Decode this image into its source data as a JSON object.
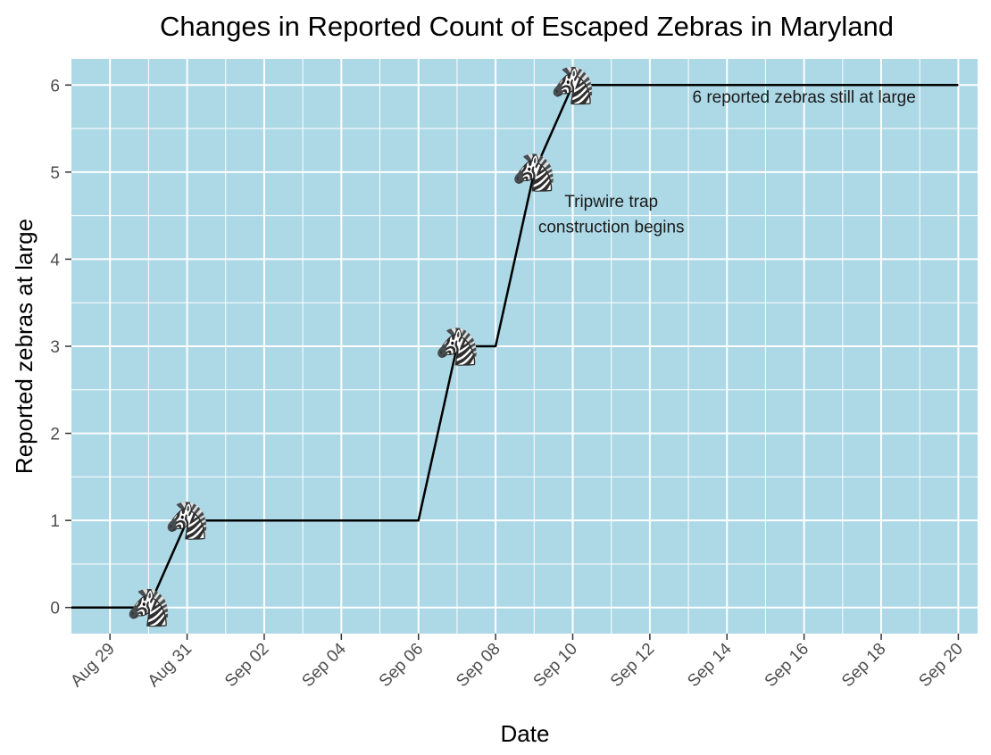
{
  "chart_data": {
    "type": "line",
    "title": "Changes in Reported Count of Escaped Zebras in Maryland",
    "xlabel": "Date",
    "ylabel": "Reported zebras at large",
    "xlim": [
      "2020-08-28",
      "2020-09-20"
    ],
    "ylim": [
      -0.3,
      6.3
    ],
    "x_ticks": [
      "2020-08-29",
      "2020-08-31",
      "2020-09-02",
      "2020-09-04",
      "2020-09-06",
      "2020-09-08",
      "2020-09-10",
      "2020-09-12",
      "2020-09-14",
      "2020-09-16",
      "2020-09-18",
      "2020-09-20"
    ],
    "x_tick_labels": [
      "Aug 29",
      "Aug 31",
      "Sep 02",
      "Sep 04",
      "Sep 06",
      "Sep 08",
      "Sep 10",
      "Sep 12",
      "Sep 14",
      "Sep 16",
      "Sep 18",
      "Sep 20"
    ],
    "y_ticks": [
      0,
      1,
      2,
      3,
      4,
      5,
      6
    ],
    "y_tick_labels": [
      "0",
      "1",
      "2",
      "3",
      "4",
      "5",
      "6"
    ],
    "grid": true,
    "panel_background": "#add8e6",
    "grid_color": "#ffffff",
    "line_color": "#000000",
    "series": [
      {
        "x": [
          "2020-08-28",
          "2020-08-30",
          "2020-08-31",
          "2020-09-06",
          "2020-09-07",
          "2020-09-08",
          "2020-09-09",
          "2020-09-10",
          "2020-09-20"
        ],
        "values": [
          0,
          0,
          1,
          1,
          3,
          3,
          5,
          6,
          6
        ]
      }
    ],
    "markers": [
      {
        "x": "2020-08-30",
        "y": 0,
        "icon": "zebra-icon",
        "glyph": "🦓"
      },
      {
        "x": "2020-08-31",
        "y": 1,
        "icon": "zebra-icon",
        "glyph": "🦓"
      },
      {
        "x": "2020-09-07",
        "y": 3,
        "icon": "zebra-icon",
        "glyph": "🦓"
      },
      {
        "x": "2020-09-09",
        "y": 5,
        "icon": "zebra-icon",
        "glyph": "🦓"
      },
      {
        "x": "2020-09-10",
        "y": 6,
        "icon": "zebra-icon",
        "glyph": "🦓"
      }
    ],
    "annotations": [
      {
        "x": "2020-09-16",
        "y": 5.8,
        "text": "6 reported zebras still at large"
      },
      {
        "x": "2020-09-11",
        "y": 4.6,
        "text": "Tripwire trap\nconstruction begins"
      }
    ]
  }
}
